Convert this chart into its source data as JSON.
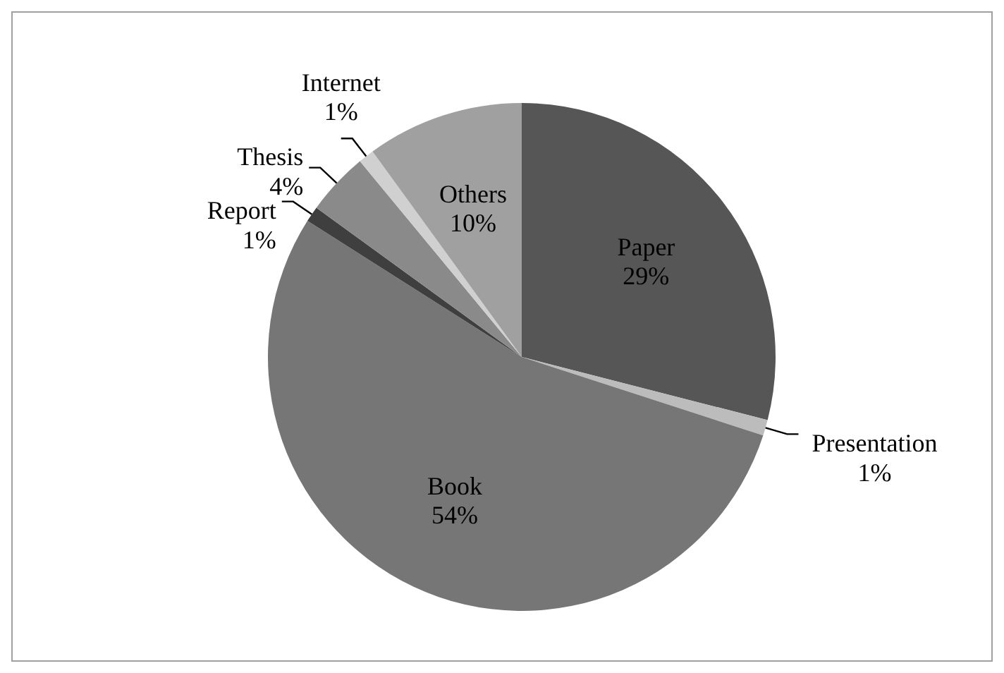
{
  "chart_data": {
    "type": "pie",
    "categories": [
      "Paper",
      "Presentation",
      "Book",
      "Report",
      "Thesis",
      "Internet",
      "Others"
    ],
    "values": [
      29,
      1,
      54,
      1,
      4,
      1,
      10
    ],
    "colors": [
      "#565656",
      "#bcbcbc",
      "#767676",
      "#3f3f3f",
      "#8a8a8a",
      "#d0d0d0",
      "#a0a0a0"
    ],
    "value_labels": [
      "29%",
      "1%",
      "54%",
      "1%",
      "4%",
      "1%",
      "10%"
    ],
    "legend": false
  }
}
